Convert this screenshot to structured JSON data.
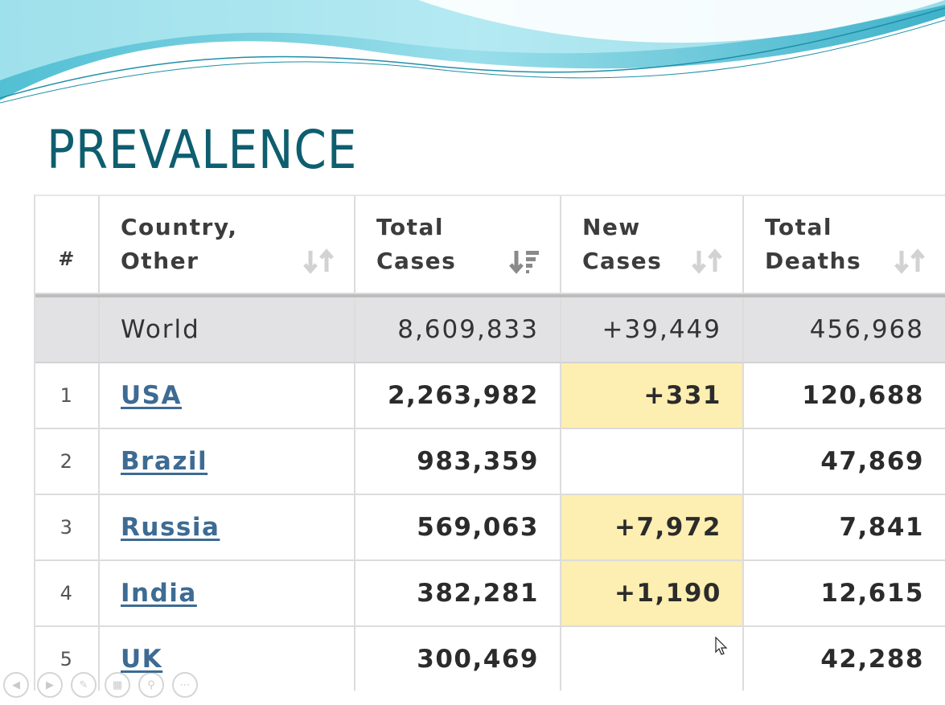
{
  "slide": {
    "title": "PREVALENCE"
  },
  "table": {
    "headers": {
      "rank": "#",
      "country": [
        "Country,",
        "Other"
      ],
      "total_cases": [
        "Total",
        "Cases"
      ],
      "new_cases": [
        "New",
        "Cases"
      ],
      "total_deaths": [
        "Total",
        "Deaths"
      ]
    },
    "world": {
      "country": "World",
      "total_cases": "8,609,833",
      "new_cases": "+39,449",
      "total_deaths": "456,968"
    },
    "rows": [
      {
        "rank": "1",
        "country": "USA",
        "total_cases": "2,263,982",
        "new_cases": "+331",
        "total_deaths": "120,688"
      },
      {
        "rank": "2",
        "country": "Brazil",
        "total_cases": "983,359",
        "new_cases": "",
        "total_deaths": "47,869"
      },
      {
        "rank": "3",
        "country": "Russia",
        "total_cases": "569,063",
        "new_cases": "+7,972",
        "total_deaths": "7,841"
      },
      {
        "rank": "4",
        "country": "India",
        "total_cases": "382,281",
        "new_cases": "+1,190",
        "total_deaths": "12,615"
      },
      {
        "rank": "5",
        "country": "UK",
        "total_cases": "300,469",
        "new_cases": "",
        "total_deaths": "42,288"
      }
    ]
  },
  "colors": {
    "title": "#0e5e6f",
    "link": "#3d6b93",
    "highlight_new_cases": "#fdeeb1",
    "world_row_bg": "#e2e2e4",
    "wave": "#5ec8dc"
  },
  "icons": {
    "sort": "sort-updown-icon",
    "sort_active": "sort-descending-icon",
    "nav": [
      "previous-icon",
      "next-icon",
      "pen-icon",
      "slides-icon",
      "zoom-icon",
      "more-icon"
    ]
  }
}
